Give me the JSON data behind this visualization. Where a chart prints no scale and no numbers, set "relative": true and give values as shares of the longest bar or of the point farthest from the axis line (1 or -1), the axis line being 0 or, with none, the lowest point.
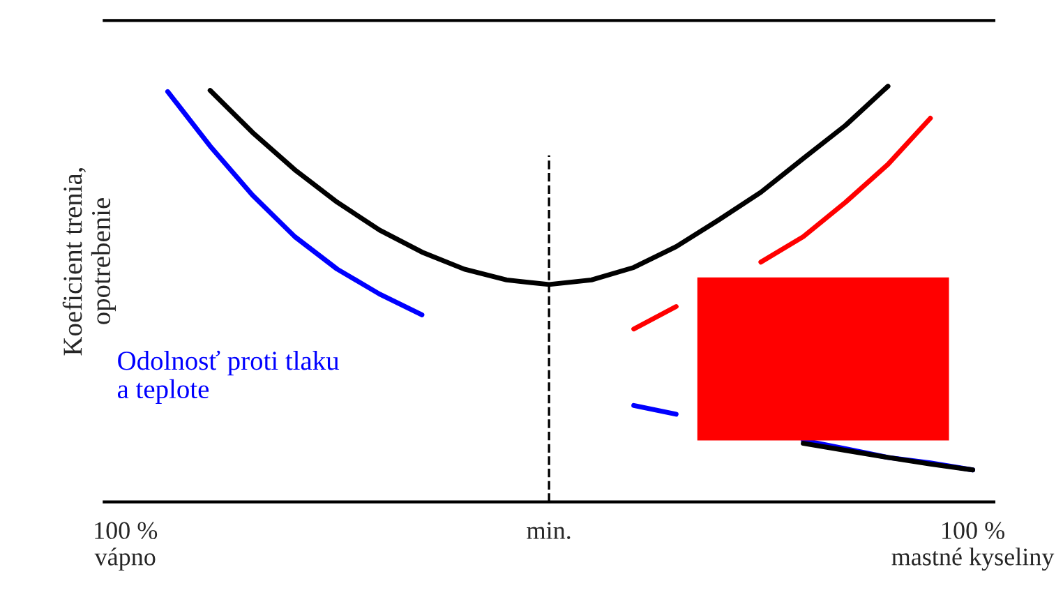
{
  "chart_data": {
    "type": "line",
    "relative": true,
    "ylabel": "Koeficient trenia,\nopotrebenie",
    "categories": [
      "100 %\nvápno",
      null,
      null,
      null,
      null,
      null,
      null,
      null,
      null,
      null,
      "min.",
      null,
      null,
      null,
      null,
      null,
      null,
      null,
      null,
      null,
      "100 %\nmastné kyseliny"
    ],
    "series": [
      {
        "color": "#000000",
        "values": [
          null,
          null,
          0.99,
          0.889,
          0.799,
          0.721,
          0.654,
          0.601,
          0.56,
          0.534,
          0.523,
          0.534,
          0.564,
          0.614,
          0.678,
          0.745,
          0.826,
          0.906,
          1.0,
          null,
          null
        ]
      },
      {
        "name": "Odolnosť proti tlaku\na teplote",
        "color": "#0000ff",
        "values": [
          null,
          0.987,
          0.856,
          0.738,
          0.638,
          0.56,
          0.5,
          0.45,
          null,
          null,
          null,
          null,
          0.232,
          0.211,
          null,
          null,
          0.148,
          0.128,
          0.107,
          0.094,
          0.077
        ]
      },
      {
        "color": "#000000",
        "values": [
          null,
          null,
          null,
          null,
          null,
          null,
          null,
          null,
          null,
          null,
          null,
          null,
          null,
          null,
          null,
          null,
          0.141,
          0.124,
          0.107,
          0.091,
          0.077
        ]
      },
      {
        "color": "#ff0000",
        "values": [
          null,
          null,
          null,
          null,
          null,
          null,
          null,
          null,
          null,
          null,
          null,
          null,
          0.416,
          0.47,
          null,
          0.577,
          0.638,
          0.721,
          0.812,
          0.923,
          null
        ]
      }
    ],
    "ref_lines": [
      {
        "axis": "x",
        "value": "min.",
        "line_style": "dashed",
        "color": "#000000"
      }
    ],
    "grid": false
  }
}
